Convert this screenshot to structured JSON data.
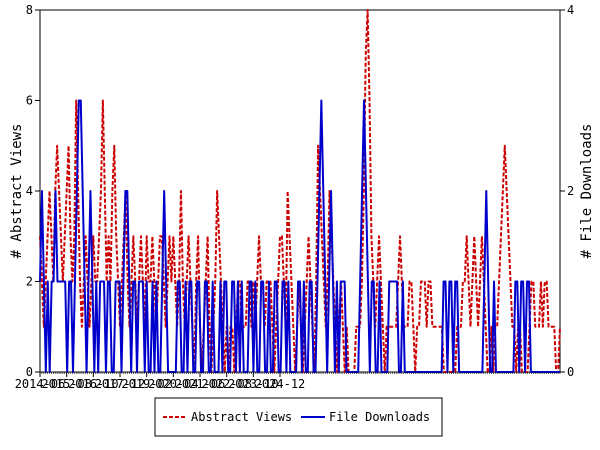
{
  "chart_data": {
    "type": "line",
    "x_tick_labels": [
      "2014-06",
      "2015-08",
      "2016-10",
      "2017-12",
      "2019-02",
      "2020-04",
      "2021-06",
      "2022-08",
      "2023-10",
      "2024-12"
    ],
    "ylabel_left": "# Abstract Views",
    "ylabel_right": "# File Downloads",
    "ylim_left": [
      0,
      8
    ],
    "ylim_right": [
      0,
      4
    ],
    "yticks_left": [
      0,
      2,
      4,
      6,
      8
    ],
    "yticks_right": [
      0,
      2,
      4
    ],
    "grid": false,
    "legend_position": "bottom-center",
    "series": [
      {
        "name": "Abstract Views",
        "axis": "left",
        "color": "#cc0000",
        "style": "dashed",
        "values": [
          3,
          2,
          1,
          2,
          3,
          4,
          3,
          2,
          4,
          5,
          4,
          3,
          2,
          3,
          4,
          5,
          3,
          2,
          3,
          6,
          4,
          2,
          1,
          2,
          3,
          2,
          1,
          2,
          3,
          2,
          2,
          3,
          4,
          6,
          4,
          2,
          3,
          2,
          4,
          5,
          3,
          2,
          1,
          2,
          3,
          4,
          2,
          1,
          2,
          3,
          2,
          1,
          2,
          3,
          2,
          1,
          3,
          2,
          2,
          3,
          2,
          1,
          2,
          3,
          3,
          2,
          1,
          2,
          3,
          2,
          3,
          2,
          1,
          2,
          4,
          2,
          1,
          2,
          3,
          2,
          1,
          0,
          2,
          3,
          1,
          0,
          1,
          2,
          3,
          1,
          0,
          1,
          2,
          4,
          3,
          2,
          1,
          0,
          1,
          0,
          1,
          1,
          0,
          1,
          2,
          2,
          1,
          1,
          1,
          2,
          2,
          1,
          2,
          1,
          2,
          3,
          2,
          2,
          1,
          2,
          2,
          2,
          1,
          0,
          1,
          2,
          3,
          3,
          2,
          1,
          4,
          3,
          2,
          1,
          0,
          1,
          2,
          1,
          0,
          1,
          2,
          3,
          2,
          1,
          0,
          2,
          5,
          4,
          3,
          2,
          1,
          2,
          4,
          3,
          2,
          1,
          0,
          1,
          2,
          1,
          0,
          1,
          0,
          0,
          0,
          0,
          1,
          1,
          1,
          2,
          4,
          7,
          8,
          6,
          3,
          2,
          1,
          2,
          3,
          2,
          1,
          0,
          1,
          1,
          1,
          1,
          1,
          1,
          2,
          3,
          2,
          1,
          1,
          1,
          2,
          2,
          1,
          0,
          1,
          1,
          2,
          2,
          2,
          1,
          2,
          2,
          1,
          1,
          1,
          1,
          1,
          1,
          0,
          0,
          0,
          0,
          0,
          0,
          0,
          1,
          1,
          1,
          2,
          2,
          3,
          2,
          1,
          2,
          3,
          2,
          1,
          2,
          3,
          2,
          1,
          0,
          0,
          1,
          0,
          1,
          1,
          2,
          3,
          4,
          5,
          4,
          3,
          2,
          1,
          1,
          0,
          1,
          1,
          0,
          0,
          0,
          0,
          1,
          2,
          2,
          1,
          1,
          1,
          2,
          1,
          2,
          2,
          1,
          1,
          1,
          1,
          0,
          0,
          1
        ]
      },
      {
        "name": "File Downloads",
        "axis": "right",
        "color": "#0000cc",
        "style": "solid",
        "values": [
          1,
          2,
          1,
          0,
          1,
          0,
          1,
          1,
          2,
          1,
          1,
          1,
          1,
          1,
          0,
          1,
          1,
          0,
          1,
          2,
          3,
          3,
          2,
          1,
          0,
          1,
          2,
          1,
          0,
          1,
          0,
          1,
          1,
          1,
          0,
          1,
          1,
          0,
          0,
          1,
          1,
          1,
          0,
          1,
          2,
          2,
          1,
          0,
          1,
          1,
          0,
          1,
          1,
          1,
          0,
          1,
          0,
          0,
          1,
          0,
          1,
          0,
          0,
          1,
          2,
          1,
          0,
          0,
          0,
          0,
          0,
          1,
          1,
          0,
          0,
          1,
          0,
          1,
          1,
          0,
          0,
          1,
          1,
          0,
          0,
          1,
          1,
          0,
          0,
          1,
          0,
          0,
          0,
          1,
          0,
          1,
          1,
          0,
          0,
          1,
          1,
          0,
          1,
          0,
          1,
          0,
          0,
          0,
          1,
          1,
          0,
          1,
          0,
          0,
          1,
          1,
          0,
          0,
          1,
          0,
          0,
          1,
          1,
          0,
          0,
          1,
          1,
          0,
          1,
          0,
          0,
          0,
          0,
          1,
          1,
          0,
          1,
          0,
          0,
          1,
          1,
          0,
          0,
          1,
          2,
          3,
          2,
          1,
          0,
          1,
          2,
          1,
          0,
          1,
          0,
          1,
          1,
          1,
          0,
          0,
          0,
          0,
          0,
          0,
          0,
          1,
          2,
          3,
          2,
          1,
          0,
          1,
          1,
          0,
          0,
          1,
          0,
          0,
          0,
          0,
          1,
          1,
          1,
          1,
          1,
          0,
          0,
          1,
          0,
          0,
          0,
          0,
          0,
          0,
          0,
          0,
          0,
          0,
          0,
          0,
          0,
          0,
          0,
          0,
          0,
          0,
          0,
          0,
          1,
          1,
          0,
          1,
          1,
          0,
          1,
          1,
          0,
          0,
          0,
          0,
          0,
          0,
          0,
          0,
          0,
          0,
          0,
          0,
          0,
          1,
          2,
          1,
          0,
          0,
          1,
          0,
          0,
          0,
          0,
          0,
          0,
          0,
          0,
          0,
          0,
          1,
          1,
          0,
          1,
          1,
          0,
          1,
          1,
          0,
          0,
          0,
          0,
          0,
          0,
          0,
          0,
          0,
          0,
          0,
          0,
          0,
          0,
          0,
          0
        ]
      }
    ]
  }
}
